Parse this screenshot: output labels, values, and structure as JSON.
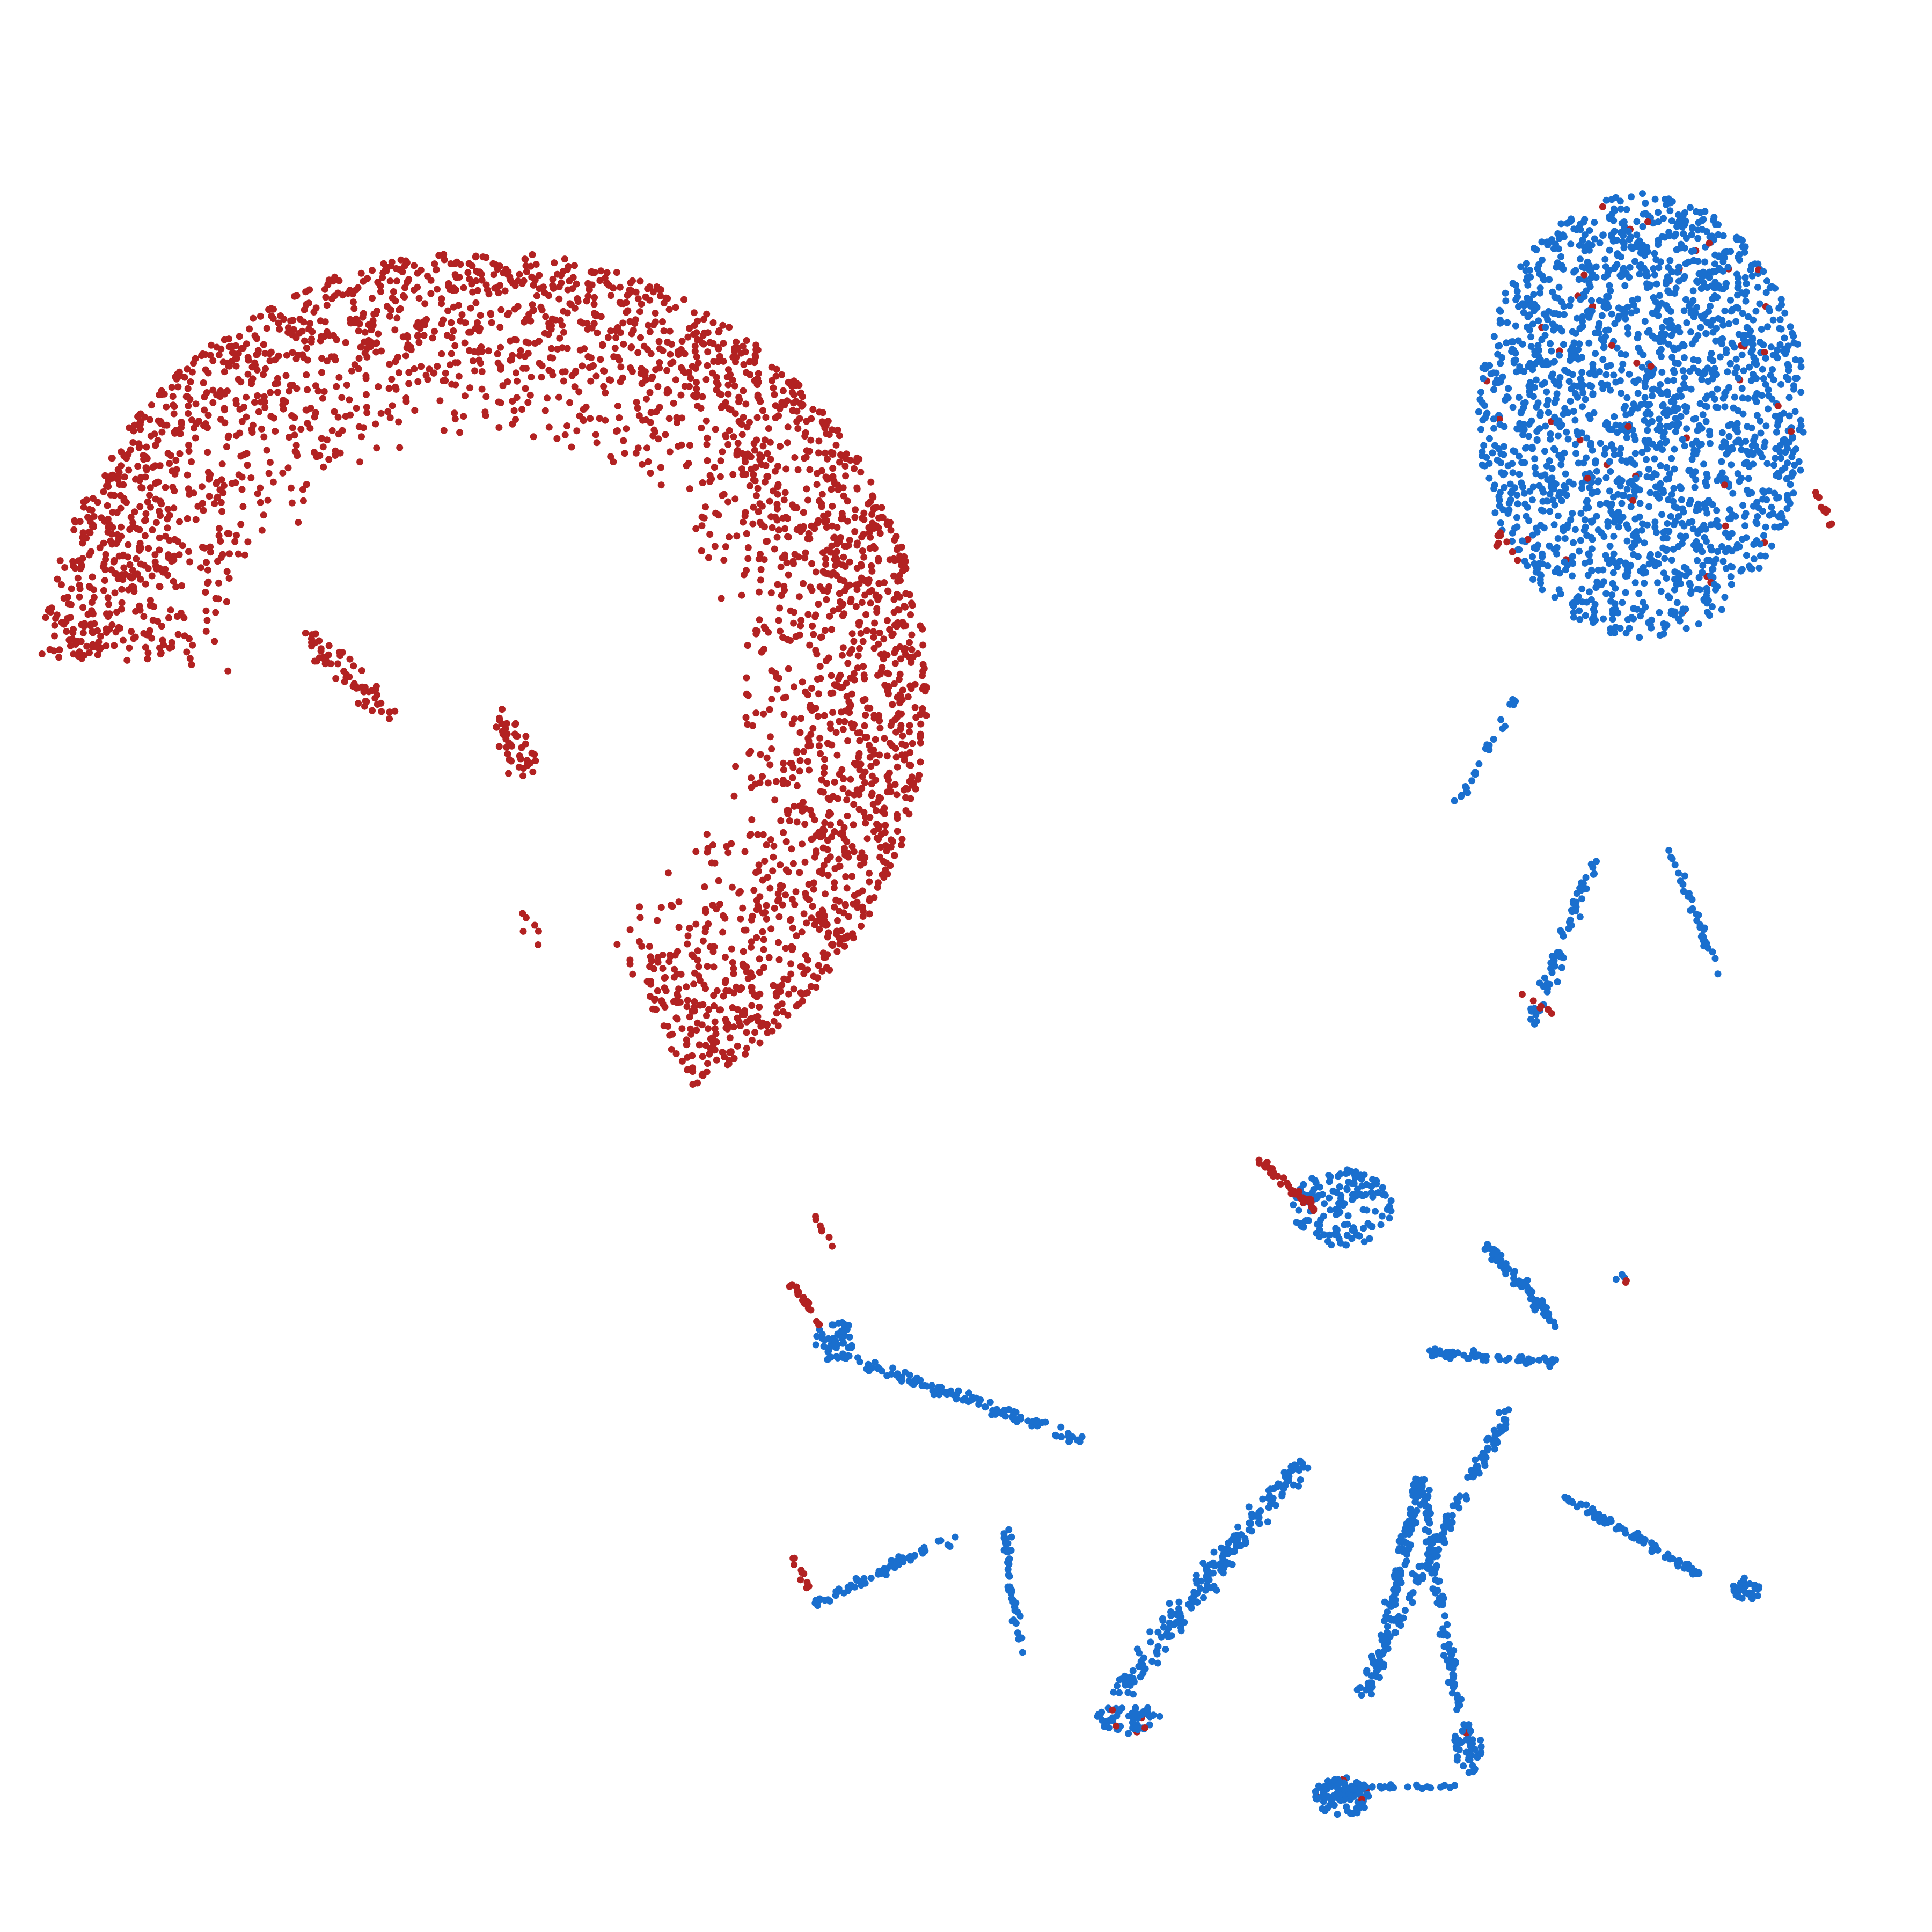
{
  "chart_data": {
    "type": "scatter",
    "title": "",
    "xlabel": "",
    "ylabel": "",
    "axes_visible": false,
    "grid": false,
    "legend": "none",
    "xlim": [
      0,
      100
    ],
    "ylim": [
      0,
      100
    ],
    "colors": {
      "red": "#b22222",
      "blue": "#1a6fce"
    },
    "clusters": [
      {
        "shape": "arc",
        "color": "red",
        "count": 2900,
        "cx": 25,
        "cy": 64,
        "r_in": 13,
        "r_out": 23,
        "a0": -62,
        "a1": 175,
        "minor": [
          {
            "x": [
              16,
              20
            ],
            "y": [
              67,
              63
            ],
            "color": "red",
            "count": 60
          },
          {
            "x": [
              26,
              27.5
            ],
            "y": [
              63,
              60
            ],
            "color": "red",
            "count": 45
          },
          {
            "x": [
              6,
              8
            ],
            "y": [
              69,
              71
            ],
            "color": "red",
            "count": 14
          },
          {
            "x": [
              27.5,
              27.8
            ],
            "y": [
              52.7,
              50.8
            ],
            "color": "red",
            "count": 6
          }
        ]
      },
      {
        "shape": "blob",
        "color": "blue",
        "count": 1900,
        "cx": 85,
        "cy": 78.5,
        "rx": 8.5,
        "ry": 11.5,
        "red_frac": 0.02,
        "minor": [
          {
            "x": [
              94,
              95
            ],
            "y": [
              74.5,
              72.5
            ],
            "color": "red",
            "count": 10
          },
          {
            "x": [
              77.5,
              78.5
            ],
            "y": [
              72.5,
              71
            ],
            "color": "red",
            "count": 8
          }
        ]
      },
      {
        "shape": "segment",
        "x": [
          75.5,
          78.5
        ],
        "y": [
          58.5,
          64
        ],
        "color": "blue",
        "count": 25,
        "spread": 0.35
      },
      {
        "shape": "segment",
        "x": [
          79.3,
          82.5
        ],
        "y": [
          47,
          55.5
        ],
        "color": "blue",
        "count": 70,
        "spread": 0.6
      },
      {
        "shape": "segment",
        "x": [
          86.5,
          89
        ],
        "y": [
          56,
          49.5
        ],
        "color": "blue",
        "count": 35,
        "spread": 0.3
      },
      {
        "shape": "segment",
        "x": [
          78,
          80.5
        ],
        "y": [
          49,
          47.5
        ],
        "color": "red",
        "count": 6,
        "spread": 0.3
      },
      {
        "shape": "blob",
        "color": "blue",
        "count": 140,
        "cx": 69.5,
        "cy": 37.5,
        "rx": 2.6,
        "ry": 2.0,
        "red_frac": 0.0,
        "minor": []
      },
      {
        "shape": "segment",
        "x": [
          65,
          68
        ],
        "y": [
          40,
          37.5
        ],
        "color": "red",
        "count": 40,
        "spread": 0.4
      },
      {
        "shape": "segment",
        "x": [
          77,
          80.5
        ],
        "y": [
          35.5,
          31.5
        ],
        "color": "blue",
        "count": 70,
        "spread": 0.5
      },
      {
        "shape": "segment",
        "x": [
          74,
          80.5
        ],
        "y": [
          30,
          29.5
        ],
        "color": "blue",
        "count": 55,
        "spread": 0.4
      },
      {
        "shape": "segment",
        "x": [
          78,
          70.5
        ],
        "y": [
          27,
          12.5
        ],
        "color": "blue",
        "count": 130,
        "spread": 0.7
      },
      {
        "shape": "segment",
        "x": [
          58,
          67.5
        ],
        "y": [
          12.5,
          24.5
        ],
        "color": "blue",
        "count": 200,
        "spread": 1.0
      },
      {
        "shape": "segment",
        "x": [
          71,
          73.5
        ],
        "y": [
          12.5,
          23.5
        ],
        "color": "blue",
        "count": 130,
        "spread": 0.5
      },
      {
        "shape": "segment",
        "x": [
          73.5,
          75.5
        ],
        "y": [
          23.5,
          11.5
        ],
        "color": "blue",
        "count": 110,
        "spread": 0.5
      },
      {
        "shape": "blob",
        "color": "blue",
        "count": 90,
        "cx": 69.5,
        "cy": 7.0,
        "rx": 1.5,
        "ry": 1.0,
        "red_frac": 0.08,
        "minor": []
      },
      {
        "shape": "blob",
        "color": "blue",
        "count": 50,
        "cx": 76.0,
        "cy": 9.5,
        "rx": 0.8,
        "ry": 1.3,
        "red_frac": 0.05,
        "minor": []
      },
      {
        "shape": "blob",
        "color": "blue",
        "count": 60,
        "cx": 58.5,
        "cy": 11.0,
        "rx": 1.8,
        "ry": 0.8,
        "red_frac": 0.1,
        "minor": []
      },
      {
        "shape": "segment",
        "x": [
          69.5,
          75.5
        ],
        "y": [
          7.5,
          7.5
        ],
        "color": "blue",
        "count": 25,
        "spread": 0.3
      },
      {
        "shape": "segment",
        "x": [
          43,
          56
        ],
        "y": [
          30,
          25.5
        ],
        "color": "blue",
        "count": 110,
        "spread": 0.5
      },
      {
        "shape": "blob",
        "color": "blue",
        "count": 45,
        "cx": 43.2,
        "cy": 30.6,
        "rx": 1.0,
        "ry": 1.2,
        "red_frac": 0.0,
        "minor": []
      },
      {
        "shape": "segment",
        "x": [
          41,
          42.5
        ],
        "y": [
          33.5,
          31.5
        ],
        "color": "red",
        "count": 20,
        "spread": 0.3
      },
      {
        "shape": "segment",
        "x": [
          42,
          43
        ],
        "y": [
          37.5,
          35.5
        ],
        "color": "red",
        "count": 7,
        "spread": 0.3
      },
      {
        "shape": "segment",
        "x": [
          42.2,
          49.5
        ],
        "y": [
          17,
          20.5
        ],
        "color": "blue",
        "count": 65,
        "spread": 0.4
      },
      {
        "shape": "segment",
        "x": [
          41,
          42
        ],
        "y": [
          19.5,
          17.5
        ],
        "color": "red",
        "count": 10,
        "spread": 0.3
      },
      {
        "shape": "segment",
        "x": [
          52,
          52.8
        ],
        "y": [
          21,
          14.5
        ],
        "color": "blue",
        "count": 45,
        "spread": 0.35
      },
      {
        "shape": "segment",
        "x": [
          81,
          88
        ],
        "y": [
          22.5,
          18.5
        ],
        "color": "blue",
        "count": 80,
        "spread": 0.4
      },
      {
        "shape": "blob",
        "color": "blue",
        "count": 30,
        "cx": 90.4,
        "cy": 17.8,
        "rx": 0.8,
        "ry": 0.6,
        "red_frac": 0.05,
        "minor": []
      },
      {
        "shape": "blob",
        "color": "blue",
        "count": 5,
        "cx": 84.0,
        "cy": 33.9,
        "rx": 0.4,
        "ry": 0.3,
        "red_frac": 0.4,
        "minor": []
      }
    ]
  }
}
